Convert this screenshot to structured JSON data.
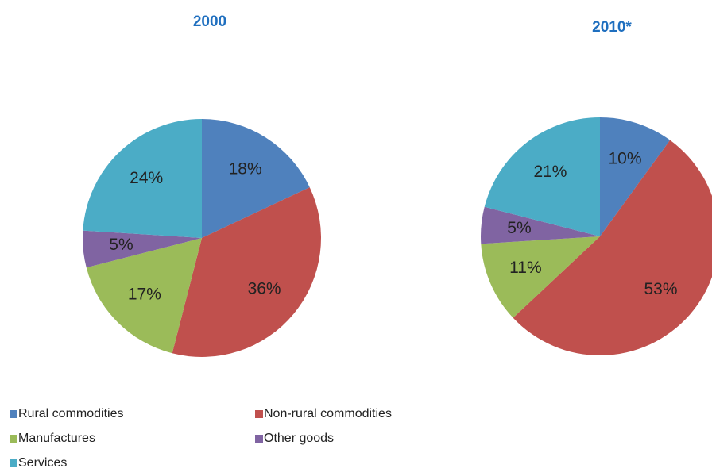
{
  "chart_data": [
    {
      "type": "pie",
      "title": "2000",
      "categories": [
        "Rural commodities",
        "Non-rural commodities",
        "Manufactures",
        "Other goods",
        "Services"
      ],
      "colors": [
        "#4f81bd",
        "#c0504d",
        "#9bbb59",
        "#8064a2",
        "#4bacc6"
      ],
      "values": [
        18,
        36,
        17,
        5,
        24
      ],
      "value_labels": [
        "18%",
        "36%",
        "17%",
        "5%",
        "24%"
      ]
    },
    {
      "type": "pie",
      "title": "2010*",
      "values": [
        10,
        53,
        11,
        5,
        21
      ],
      "value_labels": [
        "10%",
        "53%",
        "11%",
        "5%",
        "21%"
      ]
    }
  ]
}
